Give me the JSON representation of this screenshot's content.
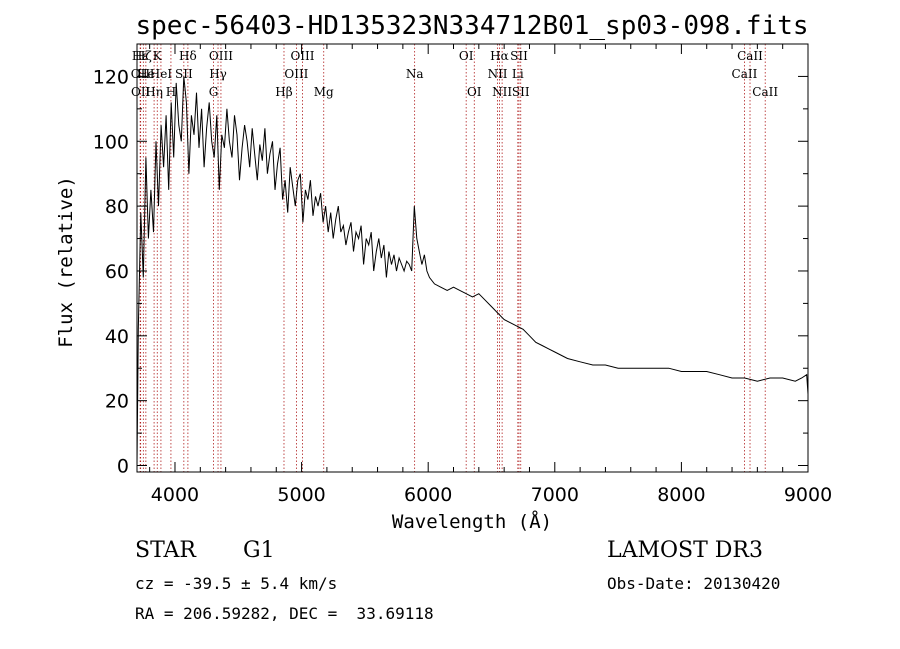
{
  "chart_data": {
    "type": "line",
    "title": "spec-56403-HD135323N334712B01_sp03-098.fits",
    "xlabel": "Wavelength (Å)",
    "ylabel": "Flux (relative)",
    "xlim": [
      3700,
      9000
    ],
    "ylim": [
      -2,
      130
    ],
    "xticks": [
      4000,
      5000,
      6000,
      7000,
      8000,
      9000
    ],
    "yticks": [
      0,
      20,
      40,
      60,
      80,
      100,
      120
    ],
    "grid": false,
    "series": [
      {
        "name": "flux",
        "x": [
          3700,
          3710,
          3730,
          3750,
          3770,
          3790,
          3810,
          3830,
          3850,
          3870,
          3890,
          3910,
          3930,
          3950,
          3970,
          3990,
          4010,
          4030,
          4050,
          4070,
          4090,
          4110,
          4130,
          4150,
          4170,
          4190,
          4210,
          4230,
          4250,
          4270,
          4290,
          4310,
          4330,
          4350,
          4370,
          4390,
          4410,
          4430,
          4450,
          4470,
          4490,
          4510,
          4530,
          4550,
          4570,
          4590,
          4610,
          4630,
          4650,
          4670,
          4690,
          4710,
          4730,
          4750,
          4770,
          4790,
          4810,
          4830,
          4850,
          4870,
          4890,
          4910,
          4930,
          4950,
          4970,
          4990,
          5010,
          5030,
          5050,
          5070,
          5090,
          5110,
          5130,
          5150,
          5170,
          5190,
          5210,
          5230,
          5250,
          5270,
          5290,
          5310,
          5330,
          5350,
          5370,
          5390,
          5410,
          5430,
          5450,
          5470,
          5490,
          5510,
          5530,
          5550,
          5570,
          5590,
          5610,
          5630,
          5650,
          5670,
          5690,
          5710,
          5730,
          5750,
          5770,
          5790,
          5810,
          5830,
          5850,
          5870,
          5890,
          5910,
          5930,
          5950,
          5970,
          5990,
          6010,
          6050,
          6100,
          6150,
          6200,
          6250,
          6300,
          6350,
          6400,
          6450,
          6500,
          6550,
          6600,
          6650,
          6700,
          6750,
          6800,
          6850,
          6900,
          6950,
          7000,
          7100,
          7200,
          7300,
          7400,
          7500,
          7600,
          7700,
          7800,
          7900,
          8000,
          8100,
          8200,
          8300,
          8400,
          8500,
          8600,
          8700,
          8800,
          8900,
          8950,
          8990,
          9000
        ],
        "y": [
          0,
          42,
          78,
          58,
          95,
          70,
          85,
          72,
          100,
          80,
          105,
          92,
          108,
          85,
          112,
          95,
          118,
          105,
          100,
          120,
          112,
          90,
          108,
          102,
          115,
          98,
          110,
          92,
          104,
          112,
          100,
          95,
          108,
          85,
          102,
          98,
          110,
          100,
          95,
          108,
          102,
          88,
          98,
          105,
          100,
          92,
          104,
          96,
          88,
          99,
          94,
          104,
          90,
          96,
          100,
          85,
          93,
          98,
          82,
          88,
          78,
          92,
          86,
          80,
          88,
          90,
          75,
          85,
          82,
          88,
          77,
          83,
          80,
          84,
          75,
          80,
          72,
          78,
          70,
          76,
          80,
          72,
          74,
          68,
          72,
          75,
          66,
          72,
          70,
          74,
          62,
          70,
          68,
          72,
          60,
          66,
          70,
          64,
          68,
          58,
          66,
          62,
          65,
          60,
          64,
          62,
          60,
          63,
          62,
          60,
          80,
          70,
          66,
          62,
          65,
          60,
          58,
          56,
          55,
          54,
          55,
          54,
          53,
          52,
          53,
          51,
          49,
          47,
          45,
          44,
          43,
          42,
          40,
          38,
          37,
          36,
          35,
          33,
          32,
          31,
          31,
          30,
          30,
          30,
          30,
          30,
          29,
          29,
          29,
          28,
          27,
          27,
          26,
          27,
          27,
          26,
          27,
          28,
          22
        ]
      }
    ],
    "lines": [
      {
        "label": "Hε",
        "x": 3725,
        "row": 0
      },
      {
        "label": "OII",
        "x": 3727,
        "row": 1
      },
      {
        "label": "OII",
        "x": 3729,
        "row": 2
      },
      {
        "label": "Hζ",
        "x": 3750,
        "row": 0
      },
      {
        "label": "He",
        "x": 3770,
        "row": 1
      },
      {
        "label": "Hη",
        "x": 3835,
        "row": 2
      },
      {
        "label": "K",
        "x": 3860,
        "row": 0
      },
      {
        "label": "HeI",
        "x": 3889,
        "row": 1
      },
      {
        "label": "H",
        "x": 3968,
        "row": 2
      },
      {
        "label": "Hδ",
        "x": 4102,
        "row": 0
      },
      {
        "label": "SII",
        "x": 4070,
        "row": 1
      },
      {
        "label": "OIII",
        "x": 4363,
        "row": 0
      },
      {
        "label": "Hγ",
        "x": 4340,
        "row": 1
      },
      {
        "label": "G",
        "x": 4305,
        "row": 2
      },
      {
        "label": "OIII",
        "x": 5007,
        "row": 0
      },
      {
        "label": "OIII",
        "x": 4959,
        "row": 1
      },
      {
        "label": "Hβ",
        "x": 4861,
        "row": 2
      },
      {
        "label": "Mg",
        "x": 5175,
        "row": 2
      },
      {
        "label": "Na",
        "x": 5893,
        "row": 1
      },
      {
        "label": "OI",
        "x": 6300,
        "row": 0
      },
      {
        "label": "OI",
        "x": 6364,
        "row": 2
      },
      {
        "label": "Hα",
        "x": 6563,
        "row": 0
      },
      {
        "label": "NII",
        "x": 6548,
        "row": 1
      },
      {
        "label": "NII",
        "x": 6584,
        "row": 2
      },
      {
        "label": "SII",
        "x": 6717,
        "row": 0
      },
      {
        "label": "Li",
        "x": 6708,
        "row": 1
      },
      {
        "label": "SII",
        "x": 6731,
        "row": 2
      },
      {
        "label": "CaII",
        "x": 8542,
        "row": 0
      },
      {
        "label": "CaII",
        "x": 8498,
        "row": 1
      },
      {
        "label": "CaII",
        "x": 8662,
        "row": 2
      }
    ]
  },
  "info": {
    "object_class": "STAR",
    "subclass": "G1",
    "survey": "LAMOST DR3",
    "redshift": "cz = -39.5 ± 5.4 km/s",
    "obs_date": "Obs-Date: 20130420",
    "coords": "RA = 206.59282, DEC =  33.69118"
  },
  "colors": {
    "line_marker": "#b02020",
    "spectrum": "#000000"
  }
}
